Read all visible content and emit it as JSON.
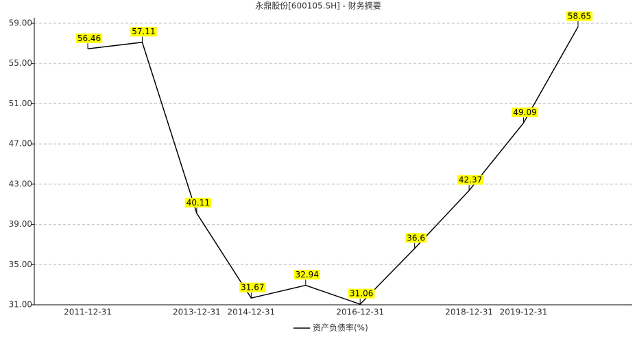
{
  "chart_data": {
    "type": "line",
    "title": "永鼎股份[600105.SH] - 财务摘要",
    "categories": [
      "2011-12-31",
      null,
      "2013-12-31",
      "2014-12-31",
      null,
      "2016-12-31",
      null,
      "2018-12-31",
      "2019-12-31",
      null
    ],
    "series": [
      {
        "name": "资产负债率(%)",
        "color": "#000000",
        "values": [
          56.46,
          57.11,
          40.11,
          31.67,
          32.94,
          31.06,
          36.6,
          42.37,
          49.09,
          58.65
        ]
      }
    ],
    "ylim": [
      31,
      59
    ],
    "yticks": [
      {
        "value": 31,
        "label": "31.00"
      },
      {
        "value": 35,
        "label": "35.00"
      },
      {
        "value": 39,
        "label": "39.00"
      },
      {
        "value": 43,
        "label": "43.00"
      },
      {
        "value": 47,
        "label": "47.00"
      },
      {
        "value": 51,
        "label": "51.00"
      },
      {
        "value": 55,
        "label": "55.00"
      },
      {
        "value": 59,
        "label": "59.00"
      }
    ],
    "grid": true,
    "label_color": "#ffff00",
    "legend": "bottom"
  }
}
